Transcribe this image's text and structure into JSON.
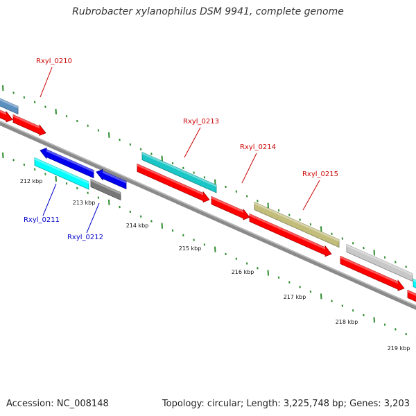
{
  "title": "Rubrobacter xylanophilus DSM 9941, complete genome",
  "footer": {
    "accession": "Accession: NC_008148",
    "summary": "Topology: circular; Length: 3,225,748 bp; Genes: 3,203"
  },
  "colors": {
    "background": "#ffffff",
    "backbone": "#8a8a8a",
    "tick_mark": "#2e8b2e",
    "forward_label": "#cc0000",
    "reverse_label": "#0000cc",
    "cds_red": "#ff0000",
    "gene_cyan": "#1ac6c6",
    "gene_bright_cyan": "#00ffff",
    "gene_blue": "#0000ee",
    "gene_gray": "#777777",
    "gene_olive": "#c2bd7a",
    "gene_light_gray": "#c8c8c8",
    "gene_steel": "#5b8fc0"
  },
  "scale_labels": [
    "212 kbp",
    "213 kbp",
    "214 kbp",
    "215 kbp",
    "216 kbp",
    "217 kbp",
    "218 kbp",
    "219 kbp"
  ],
  "gene_labels": {
    "Rxyl_0210": "Rxyl_0210",
    "Rxyl_0211": "Rxyl_0211",
    "Rxyl_0212": "Rxyl_0212",
    "Rxyl_0213": "Rxyl_0213",
    "Rxyl_0214": "Rxyl_0214",
    "Rxyl_0215": "Rxyl_0215"
  },
  "features": [
    {
      "id": "rxyl-0210-gene",
      "color": "gene_steel",
      "direction": "none"
    },
    {
      "id": "rxyl-0210-cds-prev",
      "color": "cds_red",
      "direction": "forward"
    },
    {
      "id": "rxyl-0210-cds",
      "color": "cds_red",
      "direction": "forward"
    },
    {
      "id": "rxyl-0211-cds",
      "color": "gene_blue",
      "direction": "reverse"
    },
    {
      "id": "rxyl-0211-gene",
      "color": "gene_bright_cyan",
      "direction": "none"
    },
    {
      "id": "rxyl-0212-cds",
      "color": "gene_blue",
      "direction": "reverse"
    },
    {
      "id": "rxyl-0212-gene",
      "color": "gene_gray",
      "direction": "none"
    },
    {
      "id": "rxyl-0213-gene",
      "color": "gene_cyan",
      "direction": "none"
    },
    {
      "id": "rxyl-0213-cds",
      "color": "cds_red",
      "direction": "forward"
    },
    {
      "id": "rxyl-0214-cds",
      "color": "cds_red",
      "direction": "forward"
    },
    {
      "id": "rxyl-0215-gene",
      "color": "gene_olive",
      "direction": "none"
    },
    {
      "id": "rxyl-0215-cds",
      "color": "cds_red",
      "direction": "forward"
    },
    {
      "id": "rxyl-0216-gene",
      "color": "gene_light_gray",
      "direction": "none"
    },
    {
      "id": "rxyl-0216-cds",
      "color": "cds_red",
      "direction": "forward"
    },
    {
      "id": "rxyl-0217-gene",
      "color": "gene_bright_cyan",
      "direction": "none"
    },
    {
      "id": "rxyl-0217-cds",
      "color": "cds_red",
      "direction": "forward"
    }
  ]
}
